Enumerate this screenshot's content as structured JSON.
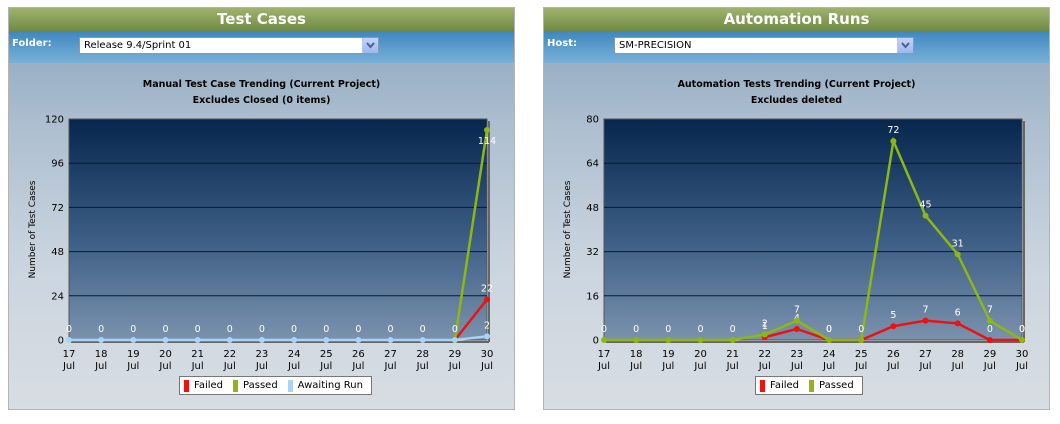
{
  "panels": [
    {
      "title": "Test Cases",
      "filter_label": "Folder:",
      "filter_value": "Release 9.4/Sprint 01",
      "chart_title": "Manual Test Case Trending (Current Project)",
      "chart_subtitle": "Excludes Closed (0 items)"
    },
    {
      "title": "Automation Runs",
      "filter_label": "Host:",
      "filter_value": "SM-PRECISION",
      "chart_title": "Automation Tests Trending (Current Project)",
      "chart_subtitle": "Excludes deleted"
    }
  ],
  "chart_data": [
    {
      "type": "line",
      "title": "Manual Test Case Trending (Current Project)",
      "subtitle": "Excludes Closed (0 items)",
      "ylabel": "Number of Test Cases",
      "xlabel": "",
      "ylim": [
        0,
        120
      ],
      "yticks": [
        0,
        24,
        48,
        72,
        96,
        120
      ],
      "categories": [
        "17 Jul",
        "18 Jul",
        "19 Jul",
        "20 Jul",
        "21 Jul",
        "22 Jul",
        "23 Jul",
        "24 Jul",
        "25 Jul",
        "26 Jul",
        "27 Jul",
        "28 Jul",
        "29 Jul",
        "30 Jul"
      ],
      "grid": true,
      "legend": "bottom",
      "series": [
        {
          "name": "Failed",
          "color": "#ee1111",
          "values": [
            null,
            null,
            null,
            null,
            null,
            null,
            null,
            null,
            null,
            null,
            null,
            null,
            0,
            22
          ],
          "labels": [
            null,
            null,
            null,
            null,
            null,
            null,
            null,
            null,
            null,
            null,
            null,
            null,
            null,
            "22"
          ]
        },
        {
          "name": "Passed",
          "color": "#8db814",
          "values": [
            null,
            null,
            null,
            null,
            null,
            null,
            null,
            null,
            null,
            null,
            null,
            null,
            0,
            114
          ],
          "labels": [
            null,
            null,
            null,
            null,
            null,
            null,
            null,
            null,
            null,
            null,
            null,
            null,
            null,
            "114"
          ]
        },
        {
          "name": "Awaiting Run",
          "color": "#a8d4f5",
          "values": [
            0,
            0,
            0,
            0,
            0,
            0,
            0,
            0,
            0,
            0,
            0,
            0,
            0,
            2
          ],
          "labels": [
            "0",
            "0",
            "0",
            "0",
            "0",
            "0",
            "0",
            "0",
            "0",
            "0",
            "0",
            "0",
            "0",
            "2"
          ]
        }
      ]
    },
    {
      "type": "line",
      "title": "Automation Tests Trending (Current Project)",
      "subtitle": "Excludes deleted",
      "ylabel": "Number of Test Cases",
      "xlabel": "",
      "ylim": [
        0,
        80
      ],
      "yticks": [
        0,
        16,
        32,
        48,
        64,
        80
      ],
      "categories": [
        "17 Jul",
        "18 Jul",
        "19 Jul",
        "20 Jul",
        "21 Jul",
        "22 Jul",
        "23 Jul",
        "24 Jul",
        "25 Jul",
        "26 Jul",
        "27 Jul",
        "28 Jul",
        "29 Jul",
        "30 Jul"
      ],
      "grid": true,
      "legend": "bottom",
      "series": [
        {
          "name": "Failed",
          "color": "#ee1111",
          "values": [
            null,
            null,
            null,
            null,
            null,
            1,
            4,
            0,
            0,
            5,
            7,
            6,
            0,
            0
          ],
          "labels": [
            null,
            null,
            null,
            null,
            null,
            "1",
            "4",
            "0",
            null,
            "5",
            "7",
            "6",
            "0",
            "0"
          ]
        },
        {
          "name": "Passed",
          "color": "#8db814",
          "values": [
            0,
            0,
            0,
            0,
            0,
            2,
            7,
            0,
            0,
            72,
            45,
            31,
            7,
            0
          ],
          "labels": [
            "0",
            "0",
            "0",
            "0",
            "0",
            "2",
            "7",
            "0",
            "0",
            "72",
            "45",
            "31",
            "7",
            "0"
          ]
        }
      ]
    }
  ]
}
